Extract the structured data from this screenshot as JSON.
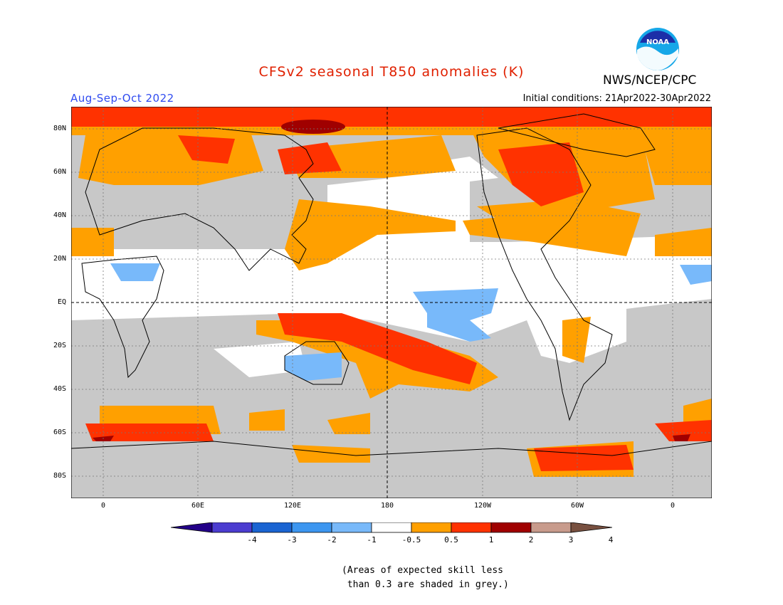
{
  "title": "CFSv2 seasonal T850 anomalies (K)",
  "period": "Aug-Sep-Oct 2022",
  "initial_conditions": "Initial conditions: 21Apr2022-30Apr2022",
  "agency": "NWS/NCEP/CPC",
  "logo_text": "NOAA",
  "colors": {
    "title": "#e02000",
    "period": "#2f4bf0",
    "skill_grey": "#c8c8c8",
    "land_outline": "#000000",
    "ocean_white": "#ffffff"
  },
  "map": {
    "lat_labels": [
      "80N",
      "60N",
      "40N",
      "20N",
      "EQ",
      "20S",
      "40S",
      "60S",
      "80S"
    ],
    "lon_labels": [
      "0",
      "60E",
      "120E",
      "180",
      "120W",
      "60W",
      "0"
    ]
  },
  "colorbar": {
    "labels": [
      "-4",
      "-3",
      "-2",
      "-1",
      "-0.5",
      "0.5",
      "1",
      "2",
      "3",
      "4"
    ],
    "colors": [
      "#230088",
      "#4b3cd0",
      "#1a64d2",
      "#3c96f0",
      "#78b9fa",
      "#ffffff",
      "#ffa000",
      "#ff3200",
      "#a00000",
      "#c89b8c",
      "#785040"
    ]
  },
  "note": {
    "line1": "(Areas of expected skill less",
    "line2": " than 0.3 are shaded in grey.)"
  }
}
